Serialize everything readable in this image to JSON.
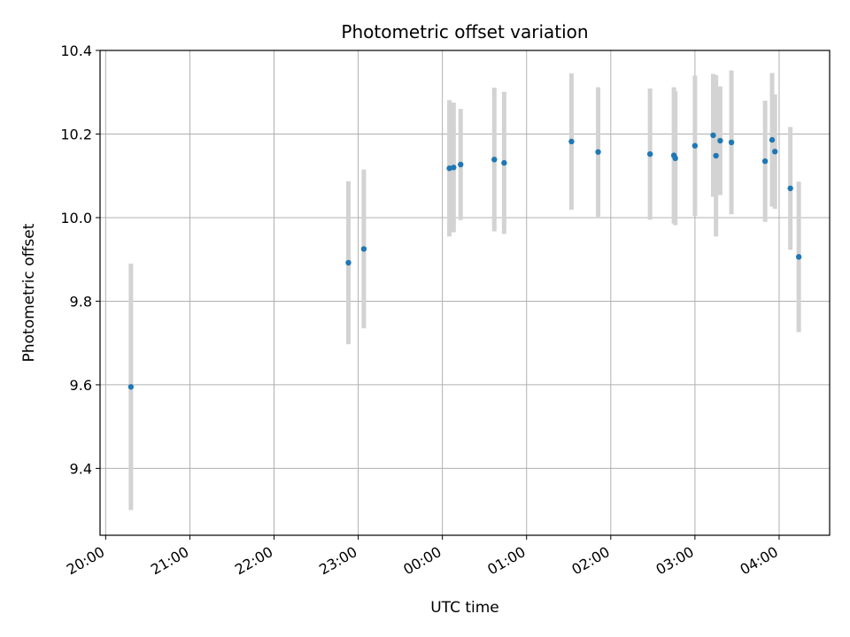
{
  "chart_data": {
    "type": "scatter",
    "title": "Photometric offset variation",
    "xlabel": "UTC time",
    "ylabel": "Photometric offset",
    "x_tick_labels": [
      "20:00",
      "21:00",
      "22:00",
      "23:00",
      "00:00",
      "01:00",
      "02:00",
      "03:00",
      "04:00"
    ],
    "y_tick_labels": [
      "9.4",
      "9.6",
      "9.8",
      "10.0",
      "10.2",
      "10.4"
    ],
    "y_ticks": [
      9.4,
      9.6,
      9.8,
      10.0,
      10.2,
      10.4
    ],
    "xlim": [
      "19:56",
      "04:36"
    ],
    "ylim": [
      9.24,
      10.4
    ],
    "grid": true,
    "colors": {
      "points": "#1f77b4",
      "errorbars": "#d3d3d3",
      "grid": "#b0b0b0",
      "axes": "#000000"
    },
    "points": [
      {
        "time": "20:18",
        "y": 9.595,
        "err": 0.295
      },
      {
        "time": "22:53",
        "y": 9.892,
        "err": 0.195
      },
      {
        "time": "23:04",
        "y": 9.925,
        "err": 0.19
      },
      {
        "time": "00:05",
        "y": 10.118,
        "err": 0.163
      },
      {
        "time": "00:08",
        "y": 10.12,
        "err": 0.155
      },
      {
        "time": "00:13",
        "y": 10.127,
        "err": 0.133
      },
      {
        "time": "00:37",
        "y": 10.139,
        "err": 0.172
      },
      {
        "time": "00:44",
        "y": 10.131,
        "err": 0.17
      },
      {
        "time": "01:32",
        "y": 10.182,
        "err": 0.163
      },
      {
        "time": "01:51",
        "y": 10.157,
        "err": 0.155
      },
      {
        "time": "02:28",
        "y": 10.152,
        "err": 0.157
      },
      {
        "time": "02:45",
        "y": 10.149,
        "err": 0.163
      },
      {
        "time": "02:46",
        "y": 10.142,
        "err": 0.16
      },
      {
        "time": "03:00",
        "y": 10.172,
        "err": 0.168
      },
      {
        "time": "03:13",
        "y": 10.197,
        "err": 0.147
      },
      {
        "time": "03:15",
        "y": 10.148,
        "err": 0.193
      },
      {
        "time": "03:18",
        "y": 10.184,
        "err": 0.13
      },
      {
        "time": "03:26",
        "y": 10.18,
        "err": 0.172
      },
      {
        "time": "03:50",
        "y": 10.135,
        "err": 0.145
      },
      {
        "time": "03:55",
        "y": 10.186,
        "err": 0.16
      },
      {
        "time": "03:57",
        "y": 10.158,
        "err": 0.137
      },
      {
        "time": "04:08",
        "y": 10.07,
        "err": 0.147
      },
      {
        "time": "04:14",
        "y": 9.906,
        "err": 0.18
      }
    ]
  }
}
